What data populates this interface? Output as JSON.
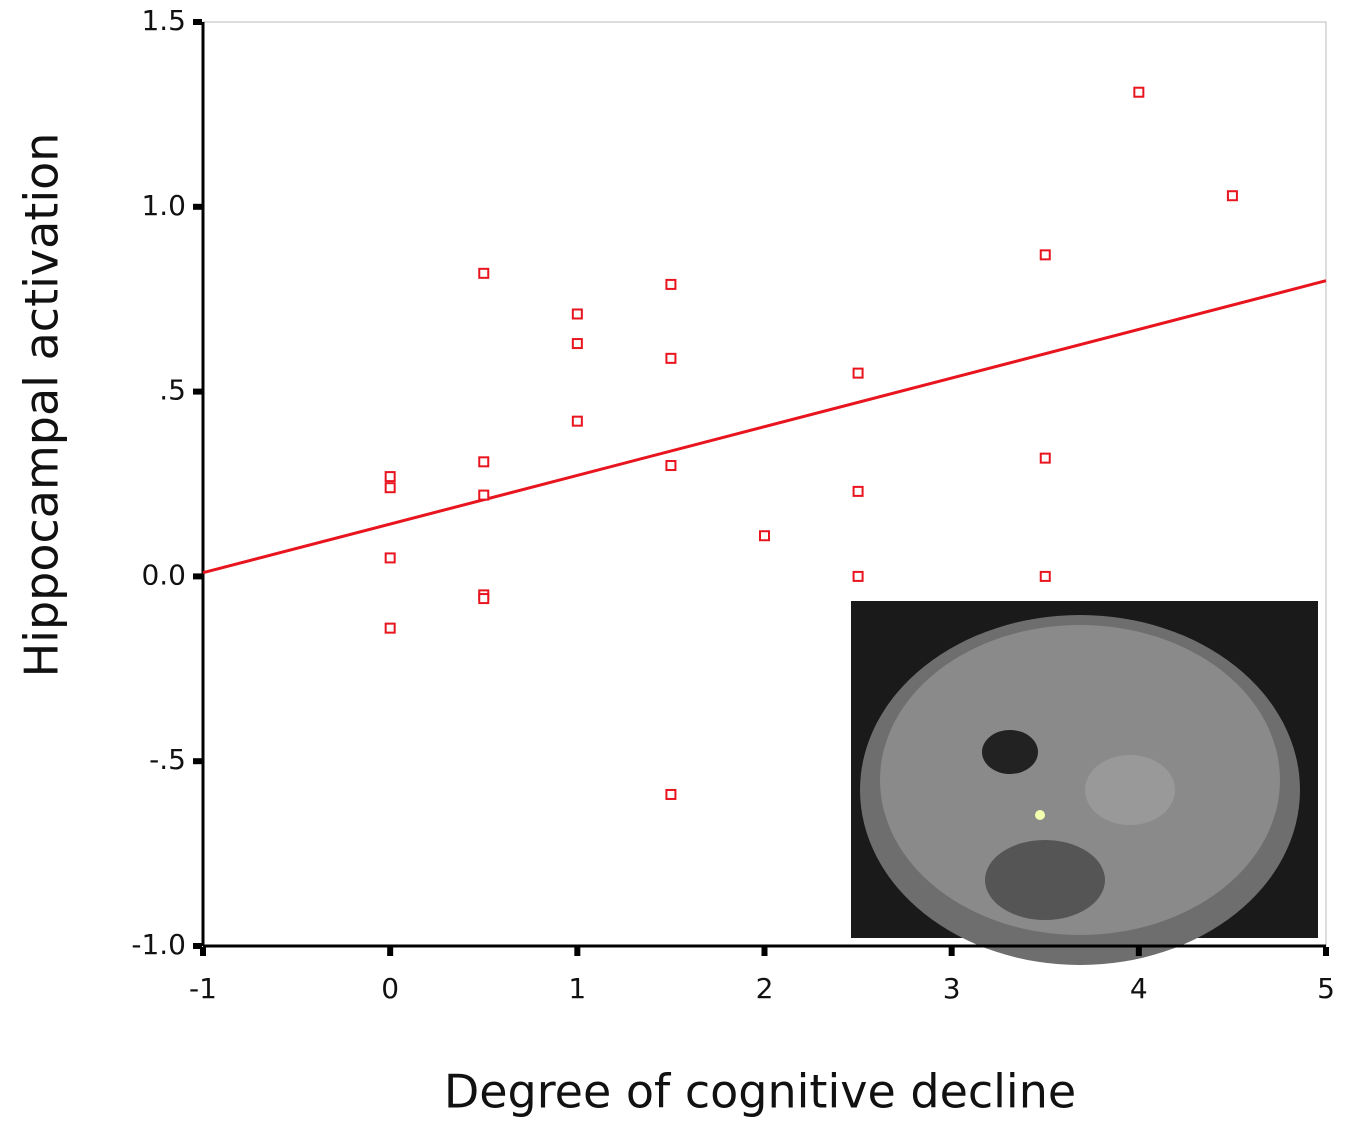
{
  "chart_data": {
    "type": "scatter",
    "x_label": "Degree of cognitive decline",
    "y_label": "Hippocampal activation",
    "xlim": [
      -1,
      5
    ],
    "ylim": [
      -1.0,
      1.5
    ],
    "xticks": [
      -1,
      0,
      1,
      2,
      3,
      4,
      5
    ],
    "yticks": [
      1.5,
      {
        "value": 1.0,
        "label": "1.0"
      },
      {
        "value": 0.5,
        "label": ".5"
      },
      {
        "value": 0.0,
        "label": "0.0"
      },
      {
        "value": -0.5,
        "label": "-.5"
      },
      {
        "value": -1.0,
        "label": "-1.0"
      }
    ],
    "color": "#e8141e",
    "x": [
      0,
      0,
      0,
      0,
      0.5,
      0.5,
      0.5,
      0.5,
      0.5,
      1,
      1,
      1,
      1.5,
      1.5,
      1.5,
      1.5,
      2,
      2.5,
      2.5,
      2.5,
      3.5,
      3.5,
      3.5,
      4,
      4.5
    ],
    "values": [
      0.27,
      0.24,
      0.05,
      -0.14,
      0.82,
      0.31,
      0.22,
      -0.05,
      -0.06,
      0.71,
      0.63,
      0.42,
      0.79,
      0.59,
      0.3,
      -0.59,
      0.11,
      0.55,
      0.23,
      0.0,
      0.87,
      0.32,
      0.0,
      1.31,
      1.03
    ],
    "trend_line": {
      "x": [
        -1,
        5
      ],
      "values": [
        0.01,
        0.8
      ],
      "color": "#e8141e"
    }
  }
}
